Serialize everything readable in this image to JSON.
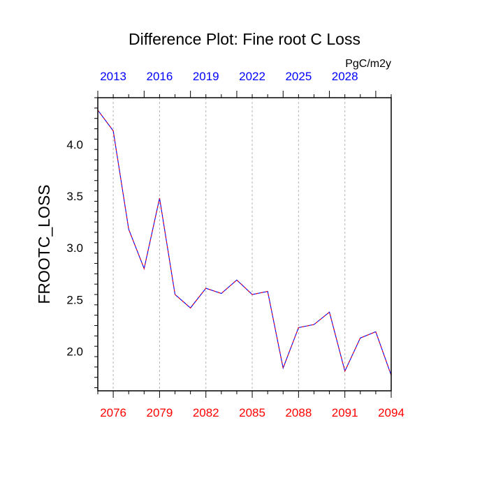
{
  "chart_data": {
    "type": "line",
    "title": "Difference Plot: Fine root C Loss",
    "units": "PgC/m2y",
    "ylabel": "FROOTC_LOSS",
    "xlim": [
      2075,
      2094
    ],
    "ylim": [
      1.62,
      4.45
    ],
    "bottom_axis": {
      "color": "#ff0000",
      "ticks": [
        2076,
        2079,
        2082,
        2085,
        2088,
        2091,
        2094
      ],
      "tick_labels": [
        "2076",
        "2079",
        "2082",
        "2085",
        "2088",
        "2091",
        "2094"
      ]
    },
    "top_axis": {
      "color": "#0000ff",
      "tick_labels": [
        "2013",
        "2016",
        "2019",
        "2022",
        "2025",
        "2028"
      ]
    },
    "y_ticks": [
      2.0,
      2.5,
      3.0,
      3.5,
      4.0
    ],
    "y_tick_labels": [
      "2.0",
      "2.5",
      "3.0",
      "3.5",
      "4.0"
    ],
    "grid": "vertical-dashed",
    "series": [
      {
        "color": "#0000ff",
        "dash_color": "#ff0000",
        "style": "dashed",
        "x": [
          2075,
          2076,
          2077,
          2078,
          2079,
          2080,
          2081,
          2082,
          2083,
          2084,
          2085,
          2086,
          2087,
          2088,
          2089,
          2090,
          2091,
          2092,
          2093,
          2094
        ],
        "values": [
          4.33,
          4.13,
          3.18,
          2.8,
          3.48,
          2.55,
          2.42,
          2.61,
          2.56,
          2.69,
          2.55,
          2.58,
          1.84,
          2.23,
          2.26,
          2.38,
          1.81,
          2.13,
          2.19,
          1.77
        ]
      }
    ]
  }
}
